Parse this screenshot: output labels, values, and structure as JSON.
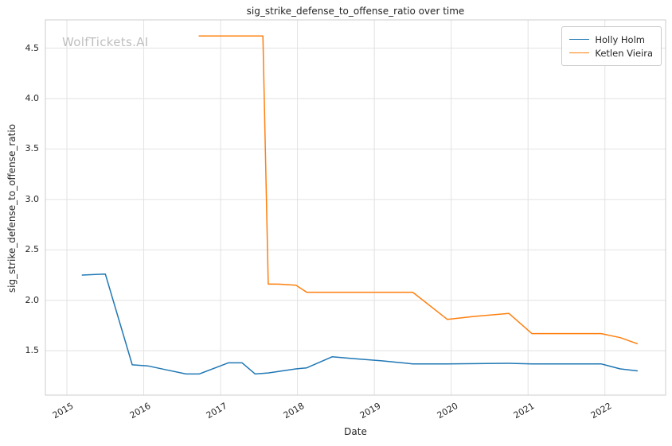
{
  "watermark": "WolfTickets.AI",
  "chart_data": {
    "type": "line",
    "title": "sig_strike_defense_to_offense_ratio over time",
    "xlabel": "Date",
    "ylabel": "sig_strike_defense_to_offense_ratio",
    "xlim": [
      2014.72,
      2022.79
    ],
    "ylim": [
      1.06,
      4.78
    ],
    "x_ticks": [
      2015,
      2016,
      2017,
      2018,
      2019,
      2020,
      2021,
      2022
    ],
    "y_ticks": [
      1.5,
      2.0,
      2.5,
      3.0,
      3.5,
      4.0,
      4.5
    ],
    "grid": true,
    "legend_position": "upper right",
    "colors": {
      "grid": "#e2e2e2",
      "plot_border": "#cccccc"
    },
    "series": [
      {
        "name": "Holly Holm",
        "color": "#1f77b4",
        "points": [
          [
            2015.2,
            2.25
          ],
          [
            2015.5,
            2.26
          ],
          [
            2015.85,
            1.36
          ],
          [
            2016.05,
            1.35
          ],
          [
            2016.3,
            1.31
          ],
          [
            2016.55,
            1.27
          ],
          [
            2016.72,
            1.27
          ],
          [
            2017.1,
            1.38
          ],
          [
            2017.28,
            1.38
          ],
          [
            2017.45,
            1.27
          ],
          [
            2017.62,
            1.28
          ],
          [
            2017.98,
            1.32
          ],
          [
            2018.12,
            1.33
          ],
          [
            2018.45,
            1.44
          ],
          [
            2018.75,
            1.42
          ],
          [
            2019.1,
            1.4
          ],
          [
            2019.5,
            1.37
          ],
          [
            2019.95,
            1.37
          ],
          [
            2020.75,
            1.375
          ],
          [
            2021.05,
            1.37
          ],
          [
            2021.4,
            1.37
          ],
          [
            2021.78,
            1.37
          ],
          [
            2021.95,
            1.37
          ],
          [
            2022.2,
            1.32
          ],
          [
            2022.42,
            1.3
          ]
        ]
      },
      {
        "name": "Ketlen Vieira",
        "color": "#ff7f0e",
        "points": [
          [
            2016.72,
            4.62
          ],
          [
            2017.05,
            4.62
          ],
          [
            2017.55,
            4.62
          ],
          [
            2017.62,
            2.16
          ],
          [
            2017.75,
            2.16
          ],
          [
            2017.98,
            2.15
          ],
          [
            2018.12,
            2.08
          ],
          [
            2018.5,
            2.08
          ],
          [
            2018.95,
            2.08
          ],
          [
            2019.2,
            2.08
          ],
          [
            2019.5,
            2.08
          ],
          [
            2019.95,
            1.81
          ],
          [
            2020.3,
            1.84
          ],
          [
            2020.75,
            1.87
          ],
          [
            2021.05,
            1.67
          ],
          [
            2021.4,
            1.67
          ],
          [
            2021.78,
            1.67
          ],
          [
            2021.95,
            1.67
          ],
          [
            2022.2,
            1.63
          ],
          [
            2022.42,
            1.57
          ]
        ]
      }
    ]
  }
}
